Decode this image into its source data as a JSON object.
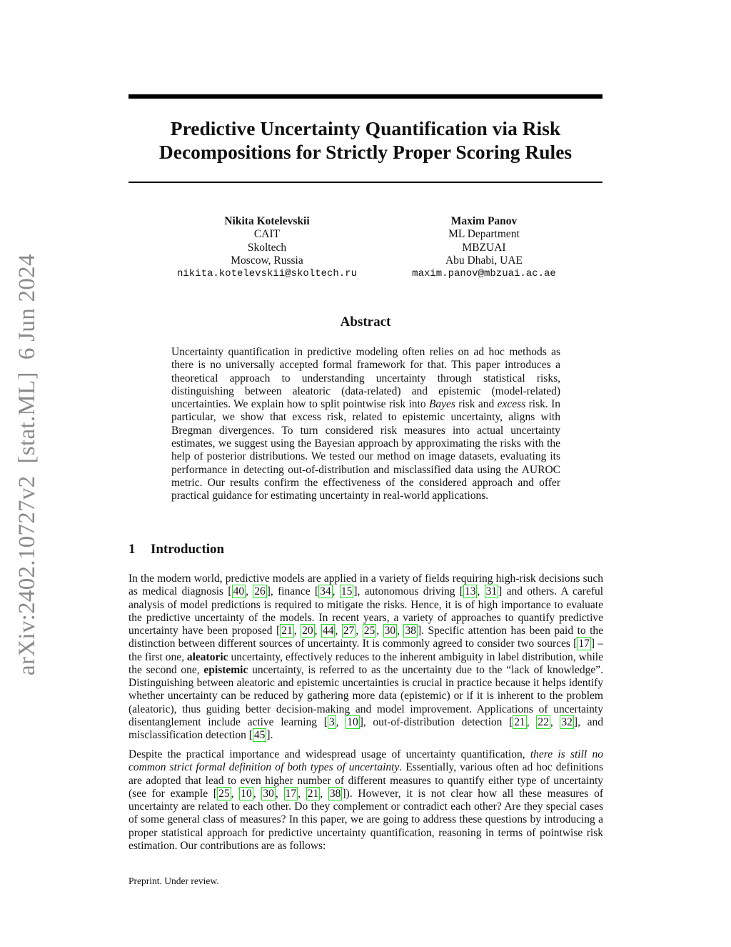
{
  "arxiv_stamp": "arXiv:2402.10727v2  [stat.ML]  6 Jun 2024",
  "title": "Predictive Uncertainty Quantification via Risk Decompositions for Strictly Proper Scoring Rules",
  "authors": [
    {
      "name": "Nikita Kotelevskii",
      "lines": [
        "CAIT",
        "Skoltech",
        "Moscow, Russia"
      ],
      "email": "nikita.kotelevskii@skoltech.ru"
    },
    {
      "name": "Maxim Panov",
      "lines": [
        "ML Department",
        "MBZUAI",
        "Abu Dhabi, UAE"
      ],
      "email": "maxim.panov@mbzuai.ac.ae"
    }
  ],
  "abstract": {
    "heading": "Abstract",
    "segments": [
      {
        "t": "Uncertainty quantification in predictive modeling often relies on ad hoc meth­ods as there is no universally accepted formal framework for that. This paper introduces a theoretical approach to understanding uncertainty through statistical risks, distinguishing between aleatoric (data-related) and epistemic (model-related) uncertainties. We explain how to split pointwise risk into "
      },
      {
        "t": "Bayes",
        "s": "i"
      },
      {
        "t": " risk and "
      },
      {
        "t": "excess",
        "s": "i"
      },
      {
        "t": " risk. In particular, we show that excess risk, related to epistemic uncertainty, aligns with Bregman divergences. To turn considered risk measures into actual uncertainty estimates, we suggest using the Bayesian approach by approximating the risks with the help of posterior distributions. We tested our method on image datasets, evaluating its performance in detecting out-of-distribution and misclassified data using the AUROC metric. Our results confirm the effectiveness of the considered approach and offer practical guidance for estimating uncertainty in real-world applications."
      }
    ]
  },
  "section": {
    "number": "1",
    "title": "Introduction"
  },
  "paragraphs": [
    [
      {
        "t": "In the modern world, predictive models are applied in a variety of fields requiring high-risk decisions such as medical diagnosis "
      },
      {
        "cite": [
          "40",
          "26"
        ]
      },
      {
        "t": ", finance "
      },
      {
        "cite": [
          "34",
          "15"
        ]
      },
      {
        "t": ", autonomous driving "
      },
      {
        "cite": [
          "13",
          "31"
        ]
      },
      {
        "t": " and others. A careful analysis of model predictions is required to mitigate the risks. Hence, it is of high importance to evaluate the predictive uncertainty of the models. In recent years, a variety of approaches to quantify predictive uncertainty have been proposed "
      },
      {
        "cite": [
          "21",
          "20",
          "44",
          "27",
          "25",
          "30",
          "38"
        ]
      },
      {
        "t": ". Specific attention has been paid to the distinction between different sources of uncertainty. It is commonly agreed to consider two sources "
      },
      {
        "cite": [
          "17"
        ]
      },
      {
        "t": " – the first one, "
      },
      {
        "t": "aleatoric",
        "s": "b"
      },
      {
        "t": " uncertainty, effectively reduces to the inherent ambiguity in label distribution, while the second one, "
      },
      {
        "t": "epistemic",
        "s": "b"
      },
      {
        "t": " uncertainty, is referred to as the uncertainty due to the “lack of knowledge”. Distinguishing between aleatoric and epistemic uncertainties is crucial in practice because it helps identify whether uncertainty can be reduced by gathering more data (epistemic) or if it is inherent to the problem (aleatoric), thus guiding better decision-making and model improvement. Applications of uncertainty disentanglement include active learning "
      },
      {
        "cite": [
          "3",
          "10"
        ]
      },
      {
        "t": ", out-of-distribution detection "
      },
      {
        "cite": [
          "21",
          "22",
          "32"
        ]
      },
      {
        "t": ", and misclassification detection "
      },
      {
        "cite": [
          "45"
        ]
      },
      {
        "t": "."
      }
    ],
    [
      {
        "t": "Despite the practical importance and widespread usage of uncertainty quantification, "
      },
      {
        "t": "there is still no common strict formal definition of both types of uncertainty",
        "s": "i"
      },
      {
        "t": ". Essentially, various often ad hoc definitions are adopted that lead to even higher number of different measures to quantify either type of uncertainty (see for example "
      },
      {
        "cite": [
          "25",
          "10",
          "30",
          "17",
          "21",
          "38"
        ]
      },
      {
        "t": "). However, it is not clear how all these measures of uncertainty are related to each other. Do they complement or contradict each other? Are they special cases of some general class of measures? In this paper, we are going to address these questions by introducing a proper statistical approach for predictive uncertainty quantification, reasoning in terms of pointwise risk estimation. Our contributions are as follows:"
      }
    ]
  ],
  "footer": "Preprint. Under review.",
  "colors": {
    "citation_box": "#22dd22",
    "stamp": "#8a8a8a"
  }
}
